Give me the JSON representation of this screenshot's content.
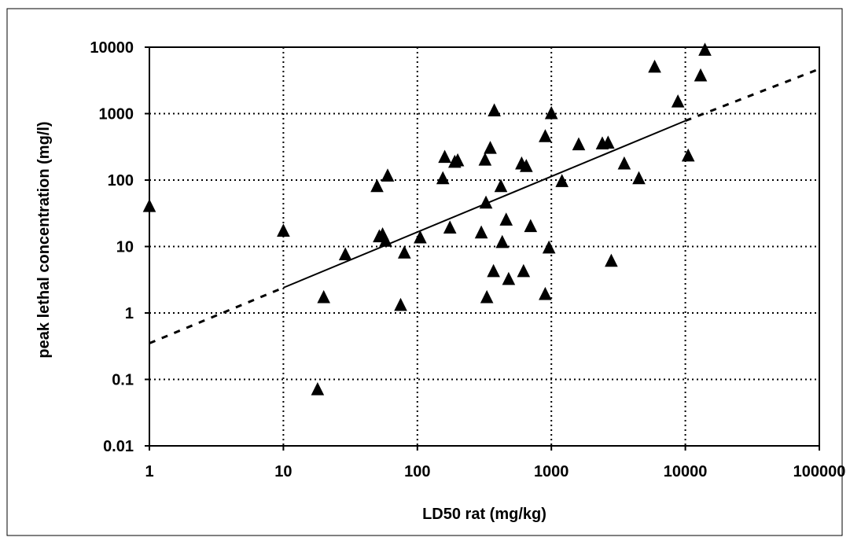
{
  "chart_data": {
    "type": "scatter",
    "xlabel": "LD50 rat (mg/kg)",
    "ylabel": "peak lethal concentration (mg/l)",
    "x_scale": "log",
    "y_scale": "log",
    "xlim": [
      1,
      100000
    ],
    "ylim": [
      0.01,
      10000
    ],
    "x_ticks": [
      1,
      10,
      100,
      1000,
      10000,
      100000
    ],
    "x_tick_labels": [
      "1",
      "10",
      "100",
      "1000",
      "10000",
      "100000"
    ],
    "y_ticks": [
      0.01,
      0.1,
      1,
      10,
      100,
      1000,
      10000
    ],
    "y_tick_labels": [
      "0.01",
      "0.1",
      "1",
      "10",
      "100",
      "1000",
      "10000"
    ],
    "grid": "major, dotted",
    "legend": "none",
    "marker": "triangle",
    "marker_color": "#000000",
    "series": [
      {
        "points": [
          [
            1,
            40
          ],
          [
            10,
            17
          ],
          [
            18,
            0.07
          ],
          [
            20,
            1.7
          ],
          [
            29,
            7.5
          ],
          [
            50,
            80
          ],
          [
            52,
            14
          ],
          [
            55,
            15
          ],
          [
            58,
            12
          ],
          [
            60,
            115
          ],
          [
            75,
            1.3
          ],
          [
            80,
            8
          ],
          [
            105,
            13.5
          ],
          [
            155,
            105
          ],
          [
            160,
            220
          ],
          [
            175,
            19
          ],
          [
            190,
            185
          ],
          [
            200,
            195
          ],
          [
            300,
            16
          ],
          [
            320,
            200
          ],
          [
            325,
            45
          ],
          [
            330,
            1.7
          ],
          [
            350,
            300
          ],
          [
            370,
            4.2
          ],
          [
            375,
            1100
          ],
          [
            420,
            80
          ],
          [
            430,
            11.5
          ],
          [
            460,
            25
          ],
          [
            480,
            3.2
          ],
          [
            600,
            175
          ],
          [
            620,
            4.2
          ],
          [
            650,
            160
          ],
          [
            700,
            20
          ],
          [
            900,
            1.9
          ],
          [
            900,
            450
          ],
          [
            960,
            9.5
          ],
          [
            1000,
            1000
          ],
          [
            1200,
            95
          ],
          [
            1600,
            340
          ],
          [
            2400,
            350
          ],
          [
            2650,
            360
          ],
          [
            2800,
            6
          ],
          [
            3500,
            175
          ],
          [
            4500,
            105
          ],
          [
            5900,
            5000
          ],
          [
            8800,
            1500
          ],
          [
            10500,
            230
          ],
          [
            13000,
            3700
          ],
          [
            14000,
            9000
          ]
        ]
      }
    ],
    "trendline": {
      "style": "solid within data range, dashed extrapolation",
      "solid_from": [
        10,
        2.4
      ],
      "solid_to": [
        10000,
        780
      ],
      "dashed_from": [
        1,
        0.35
      ],
      "dashed_to": [
        100000,
        4700
      ]
    }
  }
}
